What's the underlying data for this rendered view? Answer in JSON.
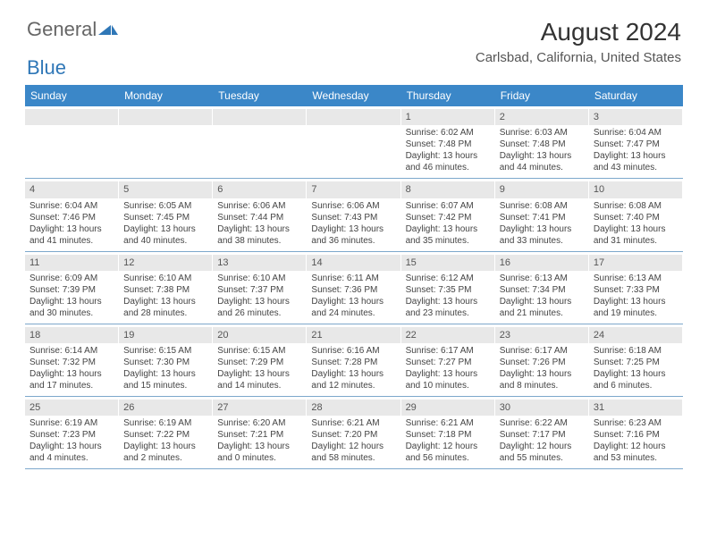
{
  "brand": {
    "part1": "General",
    "part2": "Blue"
  },
  "title": "August 2024",
  "location": "Carlsbad, California, United States",
  "colors": {
    "header_bg": "#3b87c8",
    "header_text": "#ffffff",
    "daynum_bg": "#e8e8e8",
    "week_divider": "#7da8cc",
    "text": "#444444"
  },
  "day_names": [
    "Sunday",
    "Monday",
    "Tuesday",
    "Wednesday",
    "Thursday",
    "Friday",
    "Saturday"
  ],
  "weeks": [
    [
      {
        "day": "",
        "sunrise": "",
        "sunset": "",
        "daylight": ""
      },
      {
        "day": "",
        "sunrise": "",
        "sunset": "",
        "daylight": ""
      },
      {
        "day": "",
        "sunrise": "",
        "sunset": "",
        "daylight": ""
      },
      {
        "day": "",
        "sunrise": "",
        "sunset": "",
        "daylight": ""
      },
      {
        "day": "1",
        "sunrise": "Sunrise: 6:02 AM",
        "sunset": "Sunset: 7:48 PM",
        "daylight": "Daylight: 13 hours and 46 minutes."
      },
      {
        "day": "2",
        "sunrise": "Sunrise: 6:03 AM",
        "sunset": "Sunset: 7:48 PM",
        "daylight": "Daylight: 13 hours and 44 minutes."
      },
      {
        "day": "3",
        "sunrise": "Sunrise: 6:04 AM",
        "sunset": "Sunset: 7:47 PM",
        "daylight": "Daylight: 13 hours and 43 minutes."
      }
    ],
    [
      {
        "day": "4",
        "sunrise": "Sunrise: 6:04 AM",
        "sunset": "Sunset: 7:46 PM",
        "daylight": "Daylight: 13 hours and 41 minutes."
      },
      {
        "day": "5",
        "sunrise": "Sunrise: 6:05 AM",
        "sunset": "Sunset: 7:45 PM",
        "daylight": "Daylight: 13 hours and 40 minutes."
      },
      {
        "day": "6",
        "sunrise": "Sunrise: 6:06 AM",
        "sunset": "Sunset: 7:44 PM",
        "daylight": "Daylight: 13 hours and 38 minutes."
      },
      {
        "day": "7",
        "sunrise": "Sunrise: 6:06 AM",
        "sunset": "Sunset: 7:43 PM",
        "daylight": "Daylight: 13 hours and 36 minutes."
      },
      {
        "day": "8",
        "sunrise": "Sunrise: 6:07 AM",
        "sunset": "Sunset: 7:42 PM",
        "daylight": "Daylight: 13 hours and 35 minutes."
      },
      {
        "day": "9",
        "sunrise": "Sunrise: 6:08 AM",
        "sunset": "Sunset: 7:41 PM",
        "daylight": "Daylight: 13 hours and 33 minutes."
      },
      {
        "day": "10",
        "sunrise": "Sunrise: 6:08 AM",
        "sunset": "Sunset: 7:40 PM",
        "daylight": "Daylight: 13 hours and 31 minutes."
      }
    ],
    [
      {
        "day": "11",
        "sunrise": "Sunrise: 6:09 AM",
        "sunset": "Sunset: 7:39 PM",
        "daylight": "Daylight: 13 hours and 30 minutes."
      },
      {
        "day": "12",
        "sunrise": "Sunrise: 6:10 AM",
        "sunset": "Sunset: 7:38 PM",
        "daylight": "Daylight: 13 hours and 28 minutes."
      },
      {
        "day": "13",
        "sunrise": "Sunrise: 6:10 AM",
        "sunset": "Sunset: 7:37 PM",
        "daylight": "Daylight: 13 hours and 26 minutes."
      },
      {
        "day": "14",
        "sunrise": "Sunrise: 6:11 AM",
        "sunset": "Sunset: 7:36 PM",
        "daylight": "Daylight: 13 hours and 24 minutes."
      },
      {
        "day": "15",
        "sunrise": "Sunrise: 6:12 AM",
        "sunset": "Sunset: 7:35 PM",
        "daylight": "Daylight: 13 hours and 23 minutes."
      },
      {
        "day": "16",
        "sunrise": "Sunrise: 6:13 AM",
        "sunset": "Sunset: 7:34 PM",
        "daylight": "Daylight: 13 hours and 21 minutes."
      },
      {
        "day": "17",
        "sunrise": "Sunrise: 6:13 AM",
        "sunset": "Sunset: 7:33 PM",
        "daylight": "Daylight: 13 hours and 19 minutes."
      }
    ],
    [
      {
        "day": "18",
        "sunrise": "Sunrise: 6:14 AM",
        "sunset": "Sunset: 7:32 PM",
        "daylight": "Daylight: 13 hours and 17 minutes."
      },
      {
        "day": "19",
        "sunrise": "Sunrise: 6:15 AM",
        "sunset": "Sunset: 7:30 PM",
        "daylight": "Daylight: 13 hours and 15 minutes."
      },
      {
        "day": "20",
        "sunrise": "Sunrise: 6:15 AM",
        "sunset": "Sunset: 7:29 PM",
        "daylight": "Daylight: 13 hours and 14 minutes."
      },
      {
        "day": "21",
        "sunrise": "Sunrise: 6:16 AM",
        "sunset": "Sunset: 7:28 PM",
        "daylight": "Daylight: 13 hours and 12 minutes."
      },
      {
        "day": "22",
        "sunrise": "Sunrise: 6:17 AM",
        "sunset": "Sunset: 7:27 PM",
        "daylight": "Daylight: 13 hours and 10 minutes."
      },
      {
        "day": "23",
        "sunrise": "Sunrise: 6:17 AM",
        "sunset": "Sunset: 7:26 PM",
        "daylight": "Daylight: 13 hours and 8 minutes."
      },
      {
        "day": "24",
        "sunrise": "Sunrise: 6:18 AM",
        "sunset": "Sunset: 7:25 PM",
        "daylight": "Daylight: 13 hours and 6 minutes."
      }
    ],
    [
      {
        "day": "25",
        "sunrise": "Sunrise: 6:19 AM",
        "sunset": "Sunset: 7:23 PM",
        "daylight": "Daylight: 13 hours and 4 minutes."
      },
      {
        "day": "26",
        "sunrise": "Sunrise: 6:19 AM",
        "sunset": "Sunset: 7:22 PM",
        "daylight": "Daylight: 13 hours and 2 minutes."
      },
      {
        "day": "27",
        "sunrise": "Sunrise: 6:20 AM",
        "sunset": "Sunset: 7:21 PM",
        "daylight": "Daylight: 13 hours and 0 minutes."
      },
      {
        "day": "28",
        "sunrise": "Sunrise: 6:21 AM",
        "sunset": "Sunset: 7:20 PM",
        "daylight": "Daylight: 12 hours and 58 minutes."
      },
      {
        "day": "29",
        "sunrise": "Sunrise: 6:21 AM",
        "sunset": "Sunset: 7:18 PM",
        "daylight": "Daylight: 12 hours and 56 minutes."
      },
      {
        "day": "30",
        "sunrise": "Sunrise: 6:22 AM",
        "sunset": "Sunset: 7:17 PM",
        "daylight": "Daylight: 12 hours and 55 minutes."
      },
      {
        "day": "31",
        "sunrise": "Sunrise: 6:23 AM",
        "sunset": "Sunset: 7:16 PM",
        "daylight": "Daylight: 12 hours and 53 minutes."
      }
    ]
  ]
}
